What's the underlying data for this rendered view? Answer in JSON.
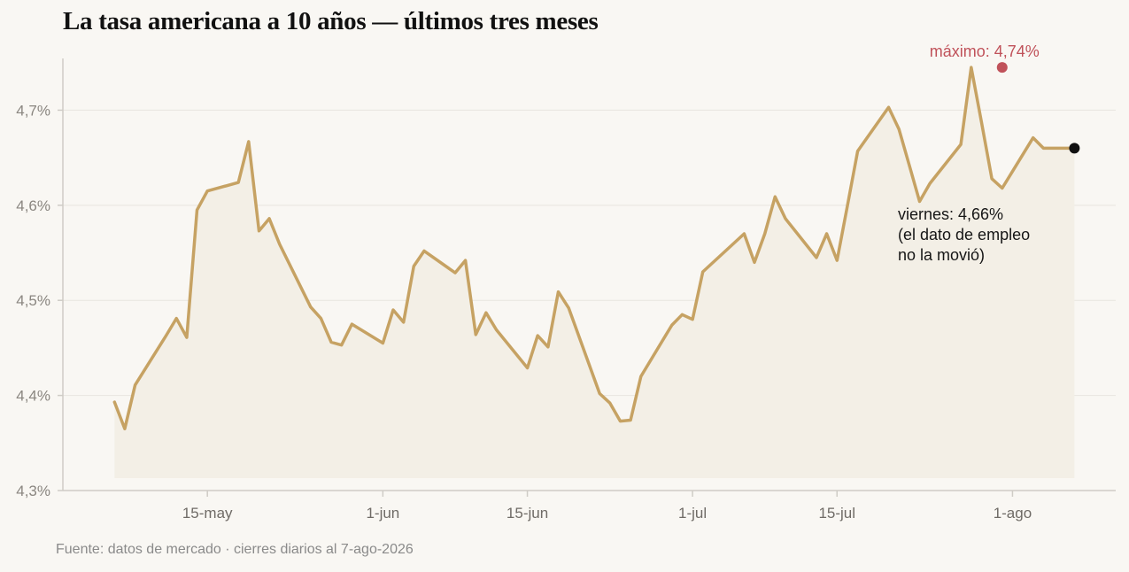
{
  "title": "La tasa americana a 10 años — últimos tres meses",
  "source": "Fuente: datos de mercado · cierres diarios al 7-ago-2026",
  "colors": {
    "line": "#c6a263",
    "area": "#f3efe6",
    "max_marker": "#c0525a",
    "last_marker": "#111111",
    "grid": "#e8e5df",
    "axis": "#cfccc6"
  },
  "chart_data": {
    "type": "line",
    "title": "La tasa americana a 10 años — últimos tres meses",
    "xlabel": "",
    "ylabel": "",
    "ylim": [
      4.3,
      4.76
    ],
    "xlim": [
      "2026-05-01",
      "2026-08-11"
    ],
    "y_ticks": [
      4.3,
      4.4,
      4.5,
      4.6,
      4.7
    ],
    "y_tick_labels": [
      "4,3%",
      "4,4%",
      "4,5%",
      "4,6%",
      "4,7%"
    ],
    "x_ticks": [
      {
        "date": "2026-05-15",
        "label": "15-may"
      },
      {
        "date": "2026-06-01",
        "label": "1-jun"
      },
      {
        "date": "2026-06-15",
        "label": "15-jun"
      },
      {
        "date": "2026-07-01",
        "label": "1-jul"
      },
      {
        "date": "2026-07-15",
        "label": "15-jul"
      },
      {
        "date": "2026-08-01",
        "label": "1-ago"
      }
    ],
    "grid": "horizontal",
    "series": [
      {
        "x": [
          "2026-05-06",
          "2026-05-07",
          "2026-05-08",
          "2026-05-11",
          "2026-05-12",
          "2026-05-13",
          "2026-05-14",
          "2026-05-15",
          "2026-05-18",
          "2026-05-19",
          "2026-05-20",
          "2026-05-21",
          "2026-05-22",
          "2026-05-25",
          "2026-05-26",
          "2026-05-27",
          "2026-05-28",
          "2026-05-29",
          "2026-06-01",
          "2026-06-02",
          "2026-06-03",
          "2026-06-04",
          "2026-06-05",
          "2026-06-08",
          "2026-06-09",
          "2026-06-10",
          "2026-06-11",
          "2026-06-12",
          "2026-06-15",
          "2026-06-16",
          "2026-06-17",
          "2026-06-18",
          "2026-06-19",
          "2026-06-22",
          "2026-06-23",
          "2026-06-24",
          "2026-06-25",
          "2026-06-26",
          "2026-06-29",
          "2026-06-30",
          "2026-07-01",
          "2026-07-02",
          "2026-07-06",
          "2026-07-07",
          "2026-07-08",
          "2026-07-09",
          "2026-07-10",
          "2026-07-13",
          "2026-07-14",
          "2026-07-15",
          "2026-07-16",
          "2026-07-17",
          "2026-07-20",
          "2026-07-21",
          "2026-07-22",
          "2026-07-23",
          "2026-07-24",
          "2026-07-27",
          "2026-07-28",
          "2026-07-29",
          "2026-07-30",
          "2026-07-31",
          "2026-08-03",
          "2026-08-04",
          "2026-08-05",
          "2026-08-06",
          "2026-08-07"
        ],
        "values": [
          4.393,
          4.365,
          4.411,
          4.463,
          4.481,
          4.461,
          4.595,
          4.615,
          4.624,
          4.667,
          4.573,
          4.586,
          4.559,
          4.493,
          4.481,
          4.456,
          4.453,
          4.475,
          4.455,
          4.49,
          4.477,
          4.536,
          4.552,
          4.529,
          4.542,
          4.464,
          4.487,
          4.469,
          4.429,
          4.463,
          4.451,
          4.509,
          4.492,
          4.402,
          4.392,
          4.373,
          4.374,
          4.42,
          4.474,
          4.485,
          4.48,
          4.53,
          4.57,
          4.54,
          4.57,
          4.609,
          4.586,
          4.545,
          4.57,
          4.542,
          4.599,
          4.657,
          4.703,
          4.68,
          4.642,
          4.604,
          4.623,
          4.664,
          4.745,
          4.687,
          4.628,
          4.618,
          4.671,
          4.66,
          4.66,
          4.66,
          4.66
        ]
      }
    ],
    "annotations": [
      {
        "text": "máximo: 4,74%",
        "x": "2026-07-31",
        "y": 4.745
      },
      {
        "text_lines": [
          "viernes: 4,66%",
          "(el dato de empleo",
          "no la movió)"
        ],
        "x": "2026-08-07",
        "y": 4.66
      }
    ]
  }
}
